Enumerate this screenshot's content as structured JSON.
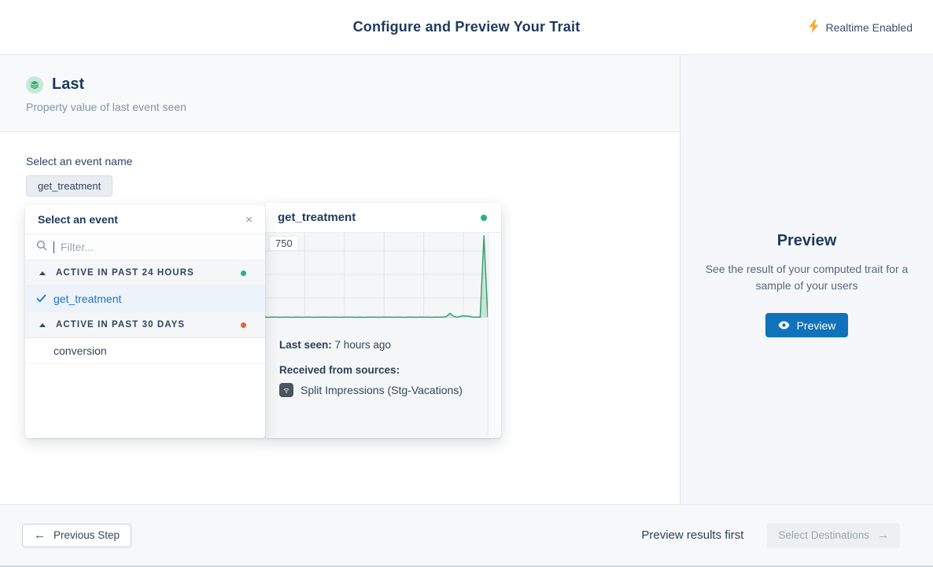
{
  "header": {
    "title": "Configure and Preview Your Trait",
    "realtime_label": "Realtime Enabled"
  },
  "trait": {
    "name": "Last",
    "description": "Property value of last event seen",
    "icon": "layers-icon"
  },
  "event_select": {
    "label": "Select an event name",
    "selected_chip": "get_treatment",
    "dropdown": {
      "title": "Select an event",
      "close_icon": "×",
      "filter_placeholder": "Filter...",
      "groups": [
        {
          "label": "ACTIVE IN PAST 24 HOURS",
          "dot_color": "#27b37a",
          "items": [
            {
              "name": "get_treatment",
              "selected": true
            }
          ]
        },
        {
          "label": "ACTIVE IN PAST 30 DAYS",
          "dot_color": "#dd6b2f",
          "items": [
            {
              "name": "conversion",
              "selected": false
            }
          ]
        }
      ]
    }
  },
  "event_detail": {
    "title": "get_treatment",
    "status_dot_color": "#27b37a",
    "last_seen_label": "Last seen:",
    "last_seen_value": "7 hours ago",
    "sources_label": "Received from sources:",
    "sources": [
      {
        "name": "Split Impressions (Stg-Vacations)",
        "icon": "split-source-icon"
      }
    ],
    "chart_data": {
      "type": "area",
      "title": "get_treatment event volume over time",
      "xlabel": "",
      "ylabel": "",
      "ylim": [
        0,
        800
      ],
      "y_tick_labels": [
        "750"
      ],
      "grid": true,
      "legend": false,
      "line_color": "#35a46b",
      "fill_color": "rgba(53,164,107,0.22)",
      "values": [
        5,
        4,
        6,
        5,
        4,
        5,
        6,
        4,
        5,
        5,
        4,
        6,
        5,
        4,
        5,
        6,
        5,
        4,
        5,
        6,
        4,
        5,
        5,
        6,
        4,
        5,
        4,
        6,
        5,
        5,
        4,
        5,
        6,
        5,
        4,
        5,
        5,
        4,
        6,
        5,
        4,
        5,
        6,
        5,
        4,
        5,
        5,
        6,
        10,
        42,
        12,
        5,
        16,
        18,
        14,
        5,
        6,
        5,
        790,
        5
      ]
    }
  },
  "preview_panel": {
    "title": "Preview",
    "description": "See the result of your computed trait for a sample of your users",
    "button_label": "Preview"
  },
  "footer": {
    "previous_label": "Previous Step",
    "hint": "Preview results first",
    "next_label": "Select Destinations"
  },
  "colors": {
    "accent_blue": "#1072ba",
    "selected_blue": "#2173c2",
    "green_status": "#27b37a",
    "orange_status": "#dd6b2f",
    "chart_green": "#35a46b",
    "lightning_orange": "#f5a834",
    "trait_icon_bg": "#c7e8d6",
    "trait_icon_fg": "#3aa878"
  }
}
